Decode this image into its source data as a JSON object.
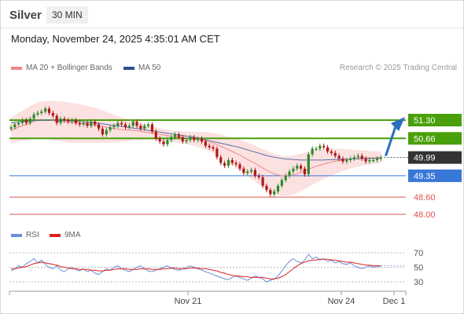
{
  "header": {
    "instrument": "Silver",
    "timeframe": "30 MIN"
  },
  "datetime": "Monday, November 24, 2025 4:35:01 AM CET",
  "legend": {
    "ma20_label": "MA 20 + Bollinger Bands",
    "ma50_label": "MA 50",
    "copyright": "Research © 2025 Trading Central",
    "rsi_label": "RSI",
    "rsi_ma_label": "9MA"
  },
  "colors": {
    "resistance": "#4aa00a",
    "pivot": "#3a78d8",
    "support": "#e05050",
    "current": "#333333",
    "bollinger_fill": "#fcdcdc",
    "ma20": "#ee8888",
    "ma50": "#5a6fa8",
    "candle_up": "#2d8a2d",
    "candle_down": "#b01818",
    "rsi": "#6a8fdc",
    "rsi_ma": "#dd2020",
    "arrow": "#2a6fbd"
  },
  "chart_data": [
    {
      "type": "line",
      "title": "Silver 30 MIN",
      "x_ticks": [
        "Nov 21",
        "Nov 24",
        "Dec 1"
      ],
      "price_levels": [
        {
          "value": 51.3,
          "label": "51.30",
          "kind": "resistance"
        },
        {
          "value": 50.66,
          "label": "50.66",
          "kind": "resistance"
        },
        {
          "value": 49.99,
          "label": "49.99",
          "kind": "current"
        },
        {
          "value": 49.35,
          "label": "49.35",
          "kind": "pivot"
        },
        {
          "value": 48.6,
          "label": "48.60",
          "kind": "support"
        },
        {
          "value": 48.0,
          "label": "48.00",
          "kind": "support"
        }
      ],
      "price_close": [
        51.05,
        51.15,
        51.2,
        51.3,
        51.2,
        51.35,
        51.5,
        51.55,
        51.6,
        51.7,
        51.55,
        51.45,
        51.2,
        51.35,
        51.3,
        51.25,
        51.3,
        51.2,
        51.15,
        51.2,
        51.1,
        51.25,
        51.15,
        51.0,
        50.8,
        50.95,
        51.05,
        51.1,
        51.2,
        51.15,
        51.05,
        51.1,
        51.25,
        51.1,
        51.0,
        51.1,
        51.15,
        50.9,
        50.65,
        50.55,
        50.45,
        50.6,
        50.7,
        50.8,
        50.7,
        50.55,
        50.6,
        50.7,
        50.6,
        50.65,
        50.55,
        50.4,
        50.35,
        50.3,
        50.0,
        49.8,
        49.7,
        49.9,
        49.8,
        49.75,
        49.6,
        49.45,
        49.5,
        49.55,
        49.35,
        49.3,
        49.0,
        48.85,
        48.7,
        48.8,
        49.0,
        49.2,
        49.35,
        49.5,
        49.6,
        49.7,
        49.6,
        49.4,
        50.1,
        50.3,
        50.3,
        50.4,
        50.35,
        50.2,
        50.15,
        50.05,
        49.95,
        49.85,
        49.9,
        49.95,
        50.0,
        50.05,
        49.95,
        49.85,
        49.9,
        49.9,
        49.95,
        49.99
      ],
      "ma20": [
        50.95,
        51.0,
        51.05,
        51.1,
        51.15,
        51.2,
        51.25,
        51.3,
        51.3,
        51.3,
        51.3,
        51.28,
        51.27,
        51.25,
        51.24,
        51.22,
        51.2,
        51.2,
        51.18,
        51.17,
        51.15,
        51.13,
        51.12,
        51.1,
        51.08,
        51.05,
        51.03,
        51.0,
        50.98,
        50.97,
        50.95,
        50.95,
        50.94,
        50.93,
        50.9,
        50.88,
        50.87,
        50.85,
        50.83,
        50.8,
        50.78,
        50.76,
        50.73,
        50.72,
        50.7,
        50.7,
        50.68,
        50.66,
        50.64,
        50.62,
        50.6,
        50.57,
        50.54,
        50.5,
        50.44,
        50.38,
        50.32,
        50.26,
        50.2,
        50.14,
        50.08,
        50.0,
        49.92,
        49.85,
        49.78,
        49.7,
        49.62,
        49.55,
        49.48,
        49.42,
        49.38,
        49.35,
        49.34,
        49.35,
        49.38,
        49.42,
        49.47,
        49.52,
        49.58,
        49.63,
        49.68,
        49.72,
        49.76,
        49.8,
        49.83,
        49.86,
        49.88,
        49.9,
        49.92,
        49.94,
        49.95,
        49.96,
        49.97,
        49.98,
        49.98,
        49.98,
        49.99,
        49.99
      ],
      "ma50": [
        51.2,
        51.22,
        51.24,
        51.25,
        51.26,
        51.27,
        51.28,
        51.29,
        51.3,
        51.3,
        51.3,
        51.3,
        51.3,
        51.3,
        51.29,
        51.28,
        51.27,
        51.26,
        51.25,
        51.24,
        51.23,
        51.22,
        51.2,
        51.18,
        51.17,
        51.15,
        51.13,
        51.12,
        51.1,
        51.08,
        51.06,
        51.04,
        51.02,
        51.0,
        50.98,
        50.96,
        50.94,
        50.92,
        50.9,
        50.88,
        50.86,
        50.84,
        50.82,
        50.8,
        50.78,
        50.76,
        50.74,
        50.72,
        50.7,
        50.67,
        50.64,
        50.61,
        50.58,
        50.55,
        50.52,
        50.49,
        50.46,
        50.43,
        50.4,
        50.37,
        50.34,
        50.3,
        50.26,
        50.22,
        50.18,
        50.14,
        50.1,
        50.06,
        50.03,
        50.0,
        49.98,
        49.96,
        49.94,
        49.93,
        49.92,
        49.91,
        49.9,
        49.9,
        49.9,
        49.9,
        49.9,
        49.9,
        49.9,
        49.91,
        49.91,
        49.92,
        49.92,
        49.93,
        49.93,
        49.94,
        49.94,
        49.95,
        49.95,
        49.95,
        49.96,
        49.96,
        49.96,
        49.96
      ],
      "projection": {
        "from": 49.99,
        "to": 51.3
      }
    },
    {
      "type": "line",
      "title": "RSI",
      "y_ticks": [
        70,
        50,
        30
      ],
      "ylim": [
        20,
        80
      ],
      "rsi": [
        45,
        48,
        52,
        50,
        55,
        58,
        62,
        56,
        60,
        54,
        50,
        48,
        52,
        46,
        44,
        48,
        50,
        47,
        45,
        48,
        44,
        46,
        42,
        40,
        44,
        48,
        46,
        50,
        52,
        48,
        46,
        44,
        47,
        50,
        52,
        48,
        45,
        44,
        46,
        48,
        50,
        52,
        49,
        47,
        46,
        48,
        50,
        52,
        50,
        48,
        46,
        44,
        42,
        40,
        38,
        36,
        34,
        33,
        36,
        38,
        36,
        34,
        32,
        35,
        38,
        36,
        34,
        30,
        32,
        34,
        38,
        45,
        52,
        58,
        62,
        58,
        56,
        60,
        68,
        62,
        64,
        60,
        62,
        58,
        60,
        56,
        58,
        55,
        54,
        56,
        52,
        50,
        48,
        50,
        52,
        50,
        51,
        52
      ],
      "rsi_ma": [
        48,
        48,
        49,
        50,
        51,
        53,
        55,
        56,
        57,
        56,
        55,
        54,
        53,
        51,
        50,
        49,
        48,
        48,
        47,
        47,
        47,
        46,
        46,
        45,
        45,
        46,
        46,
        47,
        48,
        48,
        48,
        47,
        47,
        47,
        48,
        48,
        48,
        47,
        47,
        47,
        48,
        48,
        49,
        49,
        48,
        48,
        48,
        49,
        49,
        49,
        48,
        48,
        47,
        46,
        45,
        43,
        42,
        40,
        39,
        38,
        38,
        37,
        37,
        36,
        36,
        36,
        36,
        35,
        34,
        34,
        35,
        37,
        40,
        44,
        48,
        52,
        55,
        57,
        59,
        60,
        60,
        61,
        61,
        61,
        60,
        60,
        59,
        58,
        57,
        57,
        56,
        55,
        54,
        53,
        53,
        52,
        52,
        52
      ]
    }
  ]
}
